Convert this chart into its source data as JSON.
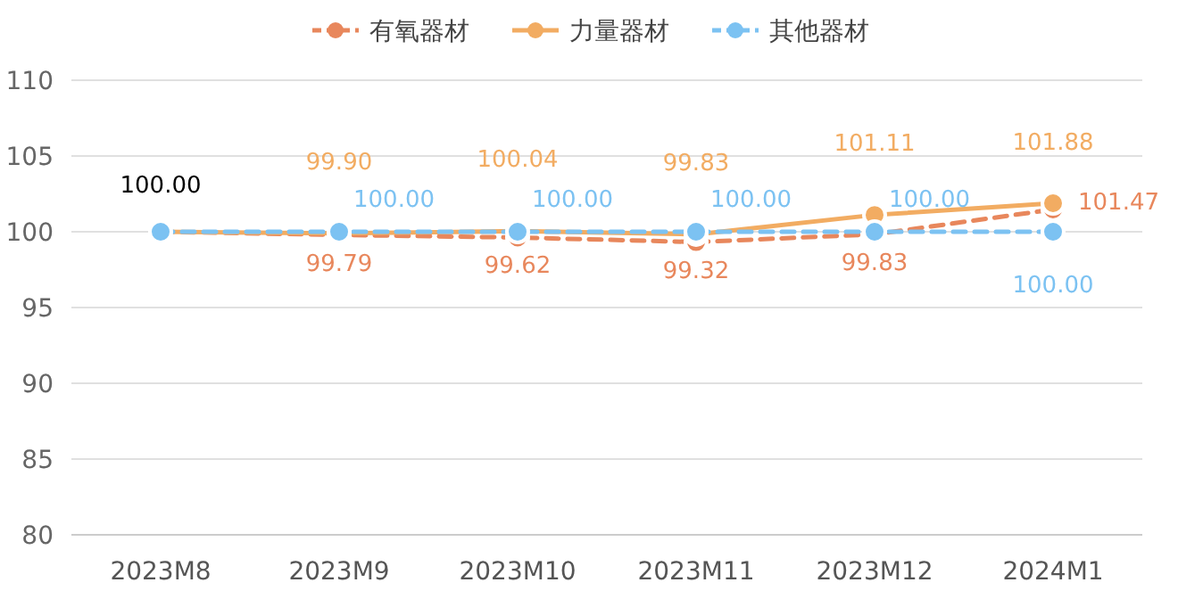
{
  "chart_data": {
    "type": "line",
    "categories": [
      "2023M8",
      "2023M9",
      "2023M10",
      "2023M11",
      "2023M12",
      "2024M1"
    ],
    "series": [
      {
        "name": "有氧器材",
        "color": "#e8875c",
        "line_style": "dashed",
        "values": [
          100.0,
          99.79,
          99.62,
          99.32,
          99.83,
          101.47
        ],
        "value_labels": [
          null,
          "99.79",
          "99.62",
          "99.32",
          "99.83",
          "101.47"
        ]
      },
      {
        "name": "力量器材",
        "color": "#f2ac62",
        "line_style": "solid",
        "values": [
          100.0,
          99.9,
          100.04,
          99.83,
          101.11,
          101.88
        ],
        "value_labels": [
          "100.00",
          "99.90",
          "100.04",
          "99.83",
          "101.11",
          "101.88"
        ]
      },
      {
        "name": "其他器材",
        "color": "#7cc2f2",
        "line_style": "dashed",
        "values": [
          100.0,
          100.0,
          100.0,
          100.0,
          100.0,
          100.0
        ],
        "value_labels": [
          null,
          "100.00",
          "100.00",
          "100.00",
          "100.00",
          "100.00"
        ]
      }
    ],
    "ylim": [
      80,
      110
    ],
    "yticks": [
      80,
      85,
      90,
      95,
      100,
      105,
      110
    ],
    "grid": "y",
    "legend": "top",
    "marker": "circle"
  }
}
